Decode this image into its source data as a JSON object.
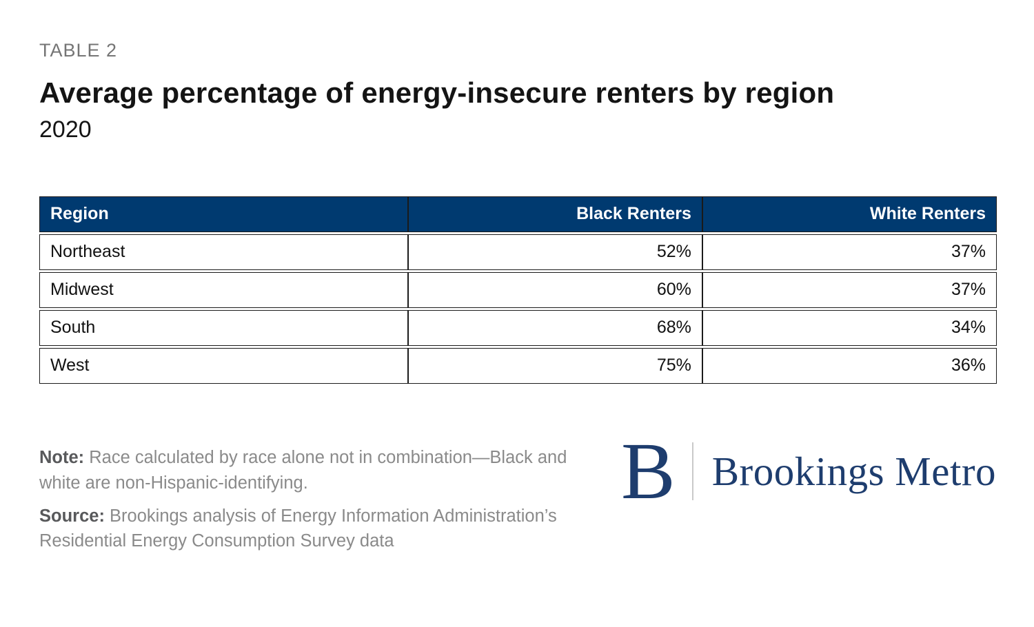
{
  "colors": {
    "header-bg": "#003A70",
    "header-text": "#FFFFFF",
    "logo-navy": "#1E3D6E",
    "border": "#1A1A1A",
    "eyebrow-gray": "#757575",
    "note-gray": "#8A8A8A",
    "note-label-gray": "#58595B",
    "divider-gray": "#C9C9C9"
  },
  "header": {
    "eyebrow": "TABLE 2",
    "title": "Average percentage of energy-insecure renters by region",
    "subtitle": "2020"
  },
  "table": {
    "columns": [
      "Region",
      "Black Renters",
      "White Renters"
    ],
    "rows": [
      {
        "region": "Northeast",
        "black": "52%",
        "white": "37%"
      },
      {
        "region": "Midwest",
        "black": "60%",
        "white": "37%"
      },
      {
        "region": "South",
        "black": "68%",
        "white": "34%"
      },
      {
        "region": "West",
        "black": "75%",
        "white": "36%"
      }
    ]
  },
  "chart_data": {
    "type": "table",
    "title": "Average percentage of energy-insecure renters by region",
    "subtitle": "2020",
    "categories": [
      "Northeast",
      "Midwest",
      "South",
      "West"
    ],
    "series": [
      {
        "name": "Black Renters",
        "values": [
          52,
          60,
          68,
          75
        ],
        "unit": "%"
      },
      {
        "name": "White Renters",
        "values": [
          37,
          37,
          34,
          36
        ],
        "unit": "%"
      }
    ]
  },
  "notes": {
    "note_label": "Note:",
    "note_text": " Race calculated by race alone not in combination—Black and white are non-Hispanic-identifying.",
    "source_label": "Source:",
    "source_text": " Brookings analysis of Energy Information Administration’s Residential Energy Consumption Survey data"
  },
  "logo": {
    "mark": "B",
    "wordmark": "Brookings Metro"
  }
}
